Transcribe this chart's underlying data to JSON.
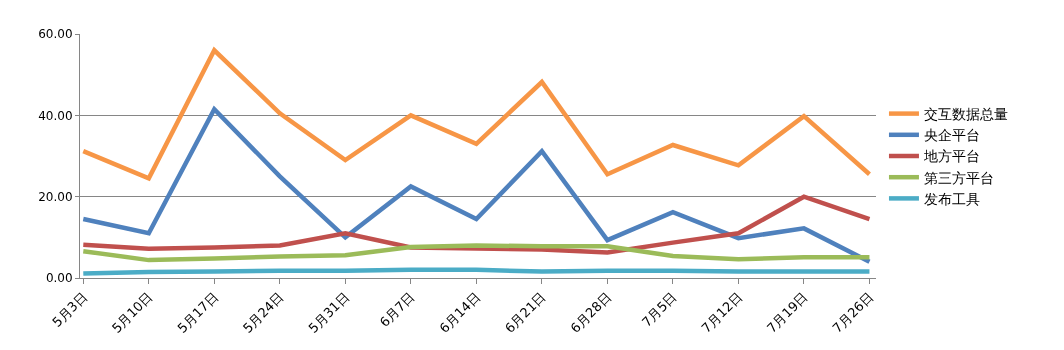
{
  "chart_data": {
    "type": "line",
    "categories": [
      "5月3日",
      "5月10日",
      "5月17日",
      "5月24日",
      "5月31日",
      "6月7日",
      "6月14日",
      "6月21日",
      "6月28日",
      "7月5日",
      "7月12日",
      "7月19日",
      "7月26日"
    ],
    "series": [
      {
        "name": "交互数据总量",
        "color": "#f79646",
        "values": [
          31.2,
          24.5,
          56,
          40.5,
          29,
          40,
          33,
          48.2,
          25.5,
          32.7,
          27.7,
          39.8,
          25.5
        ]
      },
      {
        "name": "央企平台",
        "color": "#4f81bd",
        "values": [
          14.5,
          11,
          41.5,
          25,
          10,
          22.5,
          14.5,
          31.2,
          9.3,
          16.2,
          9.8,
          12.2,
          4
        ]
      },
      {
        "name": "地方平台",
        "color": "#c0504d",
        "values": [
          8.2,
          7.2,
          7.5,
          8,
          11,
          7.5,
          null,
          7,
          6.3,
          8.7,
          11,
          20,
          14.5
        ]
      },
      {
        "name": "第三方平台",
        "color": "#9bbb59",
        "values": [
          6.6,
          4.4,
          4.8,
          5.3,
          5.6,
          7.6,
          8,
          7.8,
          7.8,
          5.4,
          4.6,
          5.1,
          5.1
        ]
      },
      {
        "name": "发布工具",
        "color": "#4bacc6",
        "values": [
          1.1,
          1.5,
          1.6,
          1.8,
          1.8,
          2,
          2,
          1.6,
          1.8,
          1.8,
          1.6,
          1.6,
          1.6
        ]
      }
    ],
    "ylim": [
      0,
      60
    ],
    "yticks": [
      {
        "value": 0,
        "label": "0.00"
      },
      {
        "value": 20,
        "label": "20.00"
      },
      {
        "value": 40,
        "label": "40.00"
      },
      {
        "value": 60,
        "label": "60.00"
      }
    ],
    "grid": "y",
    "legend": "right",
    "marker": "none",
    "line_style": "solid"
  }
}
